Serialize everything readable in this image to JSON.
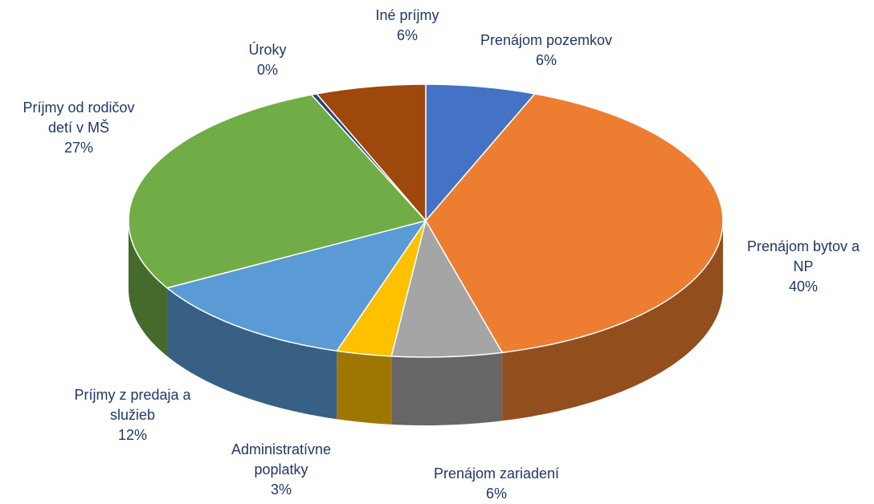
{
  "chart_data": {
    "type": "pie",
    "categories": [
      "Prenájom pozemkov",
      "Prenájom bytov a NP",
      "Prenájom zariadení",
      "Administratívne poplatky",
      "Príjmy z predaja a služieb",
      "Príjmy od rodičov detí v MŠ",
      "Úroky",
      "Iné príjmy"
    ],
    "values": [
      6,
      40,
      6,
      3,
      12,
      27,
      0.3,
      6
    ],
    "value_labels": [
      "6%",
      "40%",
      "6%",
      "3%",
      "12%",
      "27%",
      "0%",
      "6%"
    ],
    "colors": [
      "#4472c4",
      "#ed7d31",
      "#a5a5a5",
      "#ffc000",
      "#5b9bd5",
      "#70ad47",
      "#264478",
      "#9e480e"
    ]
  }
}
